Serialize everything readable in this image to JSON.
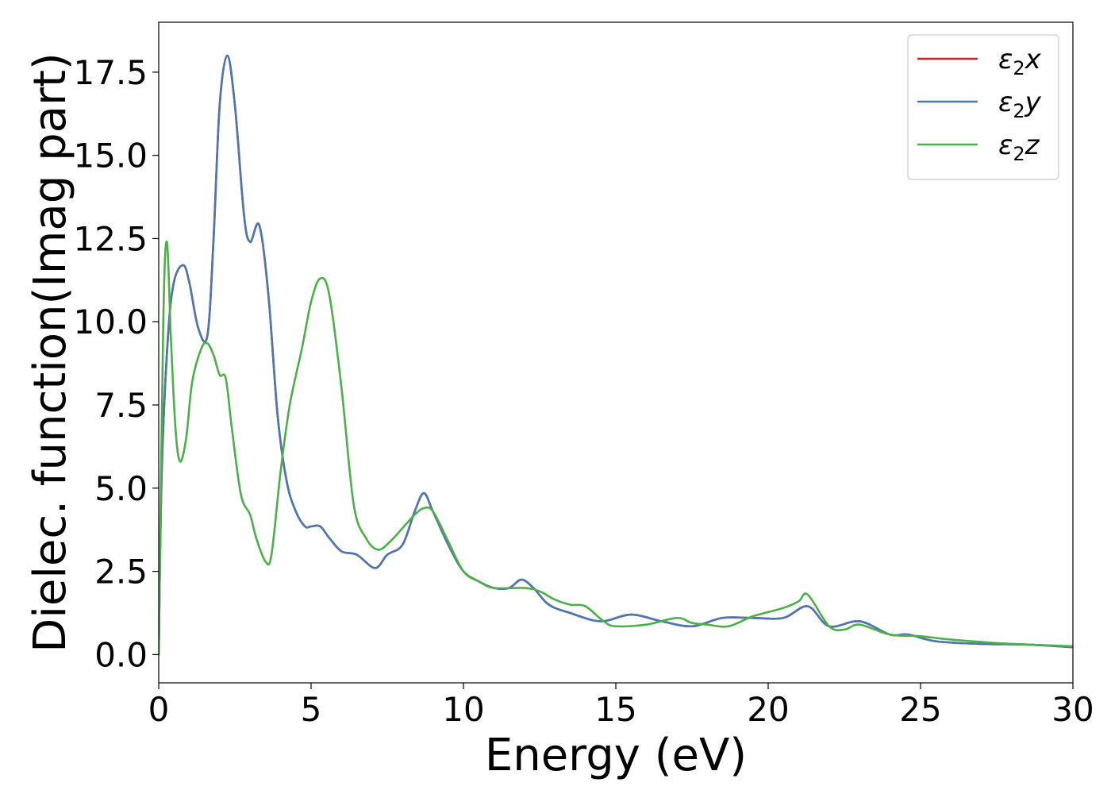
{
  "chart_data": {
    "type": "line",
    "xlabel": "Energy (eV)",
    "ylabel": "Dielec. function(Imag part)",
    "xlim": [
      0,
      30
    ],
    "ylim": [
      -0.85,
      19.0
    ],
    "xticks": [
      0,
      5,
      10,
      15,
      20,
      25,
      30
    ],
    "xtick_labels": [
      "0",
      "5",
      "10",
      "15",
      "20",
      "25",
      "30"
    ],
    "yticks": [
      0.0,
      2.5,
      5.0,
      7.5,
      10.0,
      12.5,
      15.0,
      17.5
    ],
    "ytick_labels": [
      "0.0",
      "2.5",
      "5.0",
      "7.5",
      "10.0",
      "12.5",
      "15.0",
      "17.5"
    ],
    "grid": false,
    "legend_position": "top-right",
    "series": [
      {
        "name": "ε₂x",
        "legend_base": "ε",
        "legend_sub": "2",
        "legend_var": "x",
        "color": "#e41a1c",
        "x": [
          0,
          0.1,
          0.3,
          0.5,
          0.8,
          1.0,
          1.3,
          1.6,
          1.8,
          2.0,
          2.25,
          2.5,
          2.8,
          3.0,
          3.3,
          3.6,
          3.9,
          4.2,
          4.5,
          4.8,
          5.0,
          5.3,
          5.6,
          6.0,
          6.5,
          7.1,
          7.5,
          8.0,
          8.4,
          8.7,
          9.0,
          9.5,
          10.0,
          10.5,
          11.0,
          11.5,
          11.9,
          12.3,
          12.8,
          13.5,
          14.5,
          15.5,
          16.5,
          17.5,
          18.5,
          19.5,
          20.5,
          21.3,
          22.0,
          23.0,
          24.0,
          24.6,
          25.5,
          27.0,
          28.5,
          30.0
        ],
        "y": [
          0,
          5.5,
          9.5,
          11.2,
          11.7,
          11.2,
          9.8,
          9.6,
          12.5,
          16.5,
          18.0,
          16.5,
          13.2,
          12.4,
          12.9,
          10.8,
          7.2,
          5.2,
          4.3,
          3.85,
          3.85,
          3.85,
          3.5,
          3.1,
          3.0,
          2.6,
          3.0,
          3.3,
          4.3,
          4.85,
          4.3,
          3.3,
          2.5,
          2.2,
          2.0,
          2.0,
          2.25,
          2.0,
          1.5,
          1.25,
          1.0,
          1.2,
          1.0,
          0.85,
          1.1,
          1.1,
          1.1,
          1.45,
          0.85,
          1.0,
          0.6,
          0.6,
          0.4,
          0.32,
          0.3,
          0.22
        ]
      },
      {
        "name": "ε₂y",
        "legend_base": "ε",
        "legend_sub": "2",
        "legend_var": "y",
        "color": "#4a78b0",
        "x": [
          0,
          0.1,
          0.3,
          0.5,
          0.8,
          1.0,
          1.3,
          1.6,
          1.8,
          2.0,
          2.25,
          2.5,
          2.8,
          3.0,
          3.3,
          3.6,
          3.9,
          4.2,
          4.5,
          4.8,
          5.0,
          5.3,
          5.6,
          6.0,
          6.5,
          7.1,
          7.5,
          8.0,
          8.4,
          8.7,
          9.0,
          9.5,
          10.0,
          10.5,
          11.0,
          11.5,
          11.9,
          12.3,
          12.8,
          13.5,
          14.5,
          15.5,
          16.5,
          17.5,
          18.5,
          19.5,
          20.5,
          21.3,
          22.0,
          23.0,
          24.0,
          24.6,
          25.5,
          27.0,
          28.5,
          30.0
        ],
        "y": [
          0,
          5.5,
          9.5,
          11.2,
          11.7,
          11.2,
          9.8,
          9.6,
          12.5,
          16.5,
          18.0,
          16.5,
          13.2,
          12.4,
          12.9,
          10.8,
          7.2,
          5.2,
          4.3,
          3.85,
          3.85,
          3.85,
          3.5,
          3.1,
          3.0,
          2.6,
          3.0,
          3.3,
          4.3,
          4.85,
          4.3,
          3.3,
          2.5,
          2.2,
          2.0,
          2.0,
          2.25,
          2.0,
          1.5,
          1.25,
          1.0,
          1.2,
          1.0,
          0.85,
          1.1,
          1.1,
          1.1,
          1.45,
          0.85,
          1.0,
          0.6,
          0.6,
          0.4,
          0.32,
          0.3,
          0.22
        ]
      },
      {
        "name": "ε₂z",
        "legend_base": "ε",
        "legend_sub": "2",
        "legend_var": "z",
        "color": "#4daf4a",
        "x": [
          0,
          0.15,
          0.27,
          0.4,
          0.55,
          0.7,
          0.9,
          1.1,
          1.4,
          1.6,
          1.8,
          2.0,
          2.2,
          2.4,
          2.7,
          3.0,
          3.2,
          3.5,
          3.7,
          4.0,
          4.3,
          4.7,
          5.0,
          5.3,
          5.6,
          6.0,
          6.4,
          6.8,
          7.2,
          7.6,
          8.0,
          8.4,
          8.7,
          9.0,
          9.5,
          10.0,
          10.5,
          11.0,
          12.0,
          12.5,
          13.0,
          13.5,
          14.0,
          14.6,
          15.0,
          16.0,
          17.0,
          17.5,
          18.0,
          18.7,
          19.5,
          20.5,
          21.0,
          21.3,
          22.0,
          22.5,
          23.0,
          24.0,
          25.0,
          26.0,
          28.0,
          30.0
        ],
        "y": [
          0,
          10.0,
          12.4,
          9.5,
          6.8,
          5.8,
          6.5,
          8.2,
          9.2,
          9.35,
          9.0,
          8.4,
          8.3,
          6.8,
          4.8,
          4.2,
          3.5,
          2.8,
          3.0,
          5.5,
          7.5,
          9.2,
          10.6,
          11.3,
          10.8,
          8.0,
          4.5,
          3.5,
          3.15,
          3.4,
          3.8,
          4.2,
          4.4,
          4.3,
          3.4,
          2.5,
          2.2,
          2.0,
          2.0,
          1.9,
          1.65,
          1.5,
          1.45,
          1.0,
          0.85,
          0.9,
          1.1,
          0.95,
          0.9,
          0.85,
          1.15,
          1.4,
          1.6,
          1.8,
          0.85,
          0.75,
          0.9,
          0.6,
          0.55,
          0.45,
          0.32,
          0.25
        ]
      }
    ]
  }
}
